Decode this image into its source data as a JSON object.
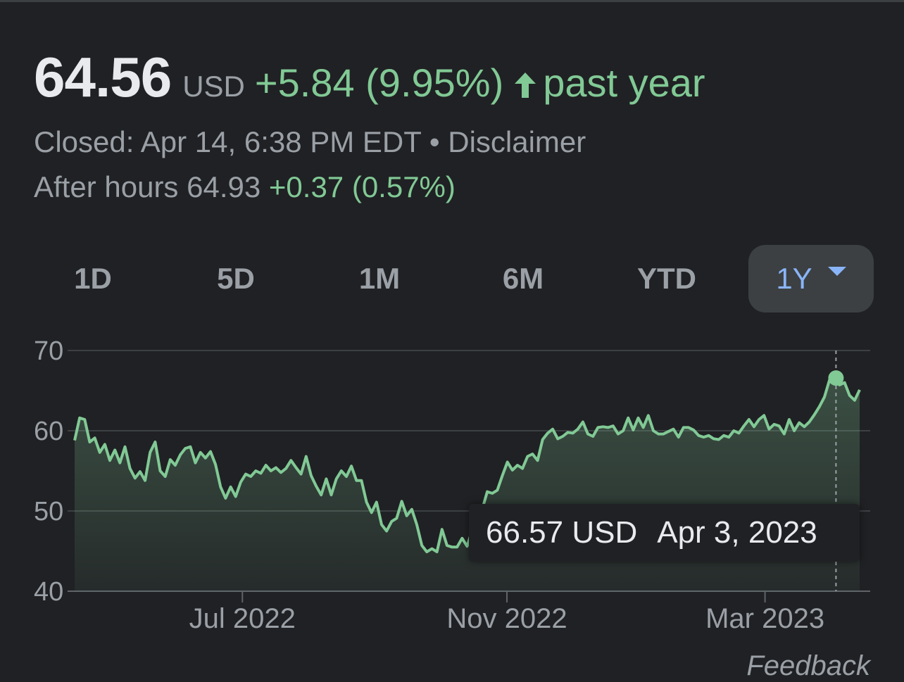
{
  "quote": {
    "price": "64.56",
    "currency": "USD",
    "change": "+5.84 (9.95%)",
    "direction_icon": "arrow-up-icon",
    "period": "past year",
    "status": "Closed: Apr 14, 6:38 PM EDT",
    "separator": "•",
    "disclaimer": "Disclaimer",
    "after_hours_label": "After hours",
    "after_hours_price": "64.93",
    "after_hours_change": "+0.37 (0.57%)"
  },
  "tabs": [
    {
      "label": "1D"
    },
    {
      "label": "5D"
    },
    {
      "label": "1M"
    },
    {
      "label": "6M"
    },
    {
      "label": "YTD"
    },
    {
      "label": "1Y",
      "active": true
    }
  ],
  "tooltip": {
    "value": "66.57 USD",
    "date": "Apr 3, 2023"
  },
  "feedback": "Feedback",
  "colors": {
    "background": "#202124",
    "positive": "#81c995",
    "active_tab": "#8ab4f8",
    "muted_text": "#9aa0a6"
  },
  "chart_data": {
    "type": "area",
    "ylim": [
      40,
      70
    ],
    "yticks": [
      70,
      60,
      50,
      40
    ],
    "xticks": [
      "Jul 2022",
      "Nov 2022",
      "Mar 2023"
    ],
    "x_range": [
      "2022-04-14",
      "2023-04-14"
    ],
    "grid": true,
    "highlight": {
      "date": "2023-04-03",
      "value": 66.57
    },
    "series": [
      {
        "values": [
          58.8,
          61.6,
          61.4,
          58.6,
          59.1,
          57.3,
          58.3,
          56.3,
          57.6,
          56.0,
          58.0,
          55.3,
          54.1,
          54.9,
          53.8,
          57.3,
          58.6,
          55.0,
          54.3,
          56.4,
          55.7,
          57.0,
          57.8,
          58.0,
          56.0,
          57.3,
          56.6,
          57.4,
          55.8,
          53.0,
          51.6,
          53.0,
          51.8,
          53.6,
          54.6,
          54.3,
          55.0,
          54.7,
          55.7,
          55.0,
          55.4,
          54.8,
          55.3,
          56.3,
          55.4,
          54.6,
          56.8,
          54.4,
          53.1,
          52.0,
          54.0,
          52.0,
          54.0,
          55.0,
          54.3,
          55.6,
          53.8,
          53.8,
          51.1,
          49.8,
          51.1,
          48.3,
          47.5,
          48.7,
          49.1,
          51.2,
          49.4,
          50.2,
          48.3,
          45.7,
          44.9,
          45.3,
          44.9,
          47.7,
          45.7,
          45.5,
          45.5,
          46.6,
          45.6,
          47.6,
          45.7,
          50.2,
          52.4,
          52.2,
          52.6,
          54.4,
          56.1,
          55.1,
          55.7,
          55.3,
          56.8,
          57.1,
          56.3,
          58.9,
          59.7,
          60.2,
          59.0,
          59.3,
          59.8,
          59.7,
          60.2,
          61.1,
          59.6,
          59.3,
          60.4,
          60.5,
          60.4,
          60.6,
          59.6,
          60.0,
          61.6,
          60.1,
          61.6,
          60.4,
          61.9,
          60.0,
          59.6,
          59.6,
          59.9,
          60.2,
          59.2,
          60.4,
          60.4,
          60.1,
          59.4,
          59.2,
          59.4,
          59.0,
          58.9,
          59.4,
          59.2,
          60.0,
          59.7,
          60.6,
          61.4,
          60.5,
          61.4,
          61.9,
          60.2,
          60.8,
          60.6,
          59.6,
          61.4,
          60.0,
          61.0,
          60.5,
          61.1,
          62.0,
          63.0,
          64.2,
          66.3,
          66.7,
          65.7,
          66.0,
          64.4,
          63.8,
          65.1
        ]
      }
    ]
  }
}
